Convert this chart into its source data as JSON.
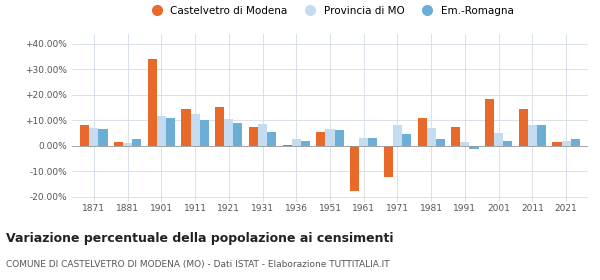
{
  "years": [
    1871,
    1881,
    1901,
    1911,
    1921,
    1931,
    1936,
    1951,
    1961,
    1971,
    1981,
    1991,
    2001,
    2011,
    2021
  ],
  "castelvetro": [
    8.0,
    1.5,
    34.0,
    14.5,
    15.0,
    7.5,
    0.2,
    5.5,
    -18.0,
    -12.5,
    11.0,
    7.5,
    18.5,
    14.5,
    1.5
  ],
  "provincia_mo": [
    7.0,
    1.0,
    11.5,
    12.5,
    10.5,
    8.5,
    2.5,
    6.5,
    3.0,
    8.0,
    7.0,
    1.5,
    5.0,
    8.0,
    2.0
  ],
  "emilia_romagna": [
    6.5,
    2.5,
    11.0,
    10.0,
    9.0,
    5.5,
    2.0,
    6.0,
    3.0,
    4.5,
    2.5,
    -1.5,
    2.0,
    8.0,
    2.5
  ],
  "color_castelvetro": "#E8692A",
  "color_provincia": "#C5DBEF",
  "color_emilia": "#6BAED6",
  "title": "Variazione percentuale della popolazione ai censimenti",
  "subtitle": "COMUNE DI CASTELVETRO DI MODENA (MO) - Dati ISTAT - Elaborazione TUTTITALIA.IT",
  "legend_labels": [
    "Castelvetro di Modena",
    "Provincia di MO",
    "Em.-Romagna"
  ],
  "ylim": [
    -22,
    44
  ],
  "yticks": [
    -20,
    -10,
    0,
    10,
    20,
    30,
    40
  ],
  "background_color": "#ffffff",
  "grid_color": "#d4dce8"
}
